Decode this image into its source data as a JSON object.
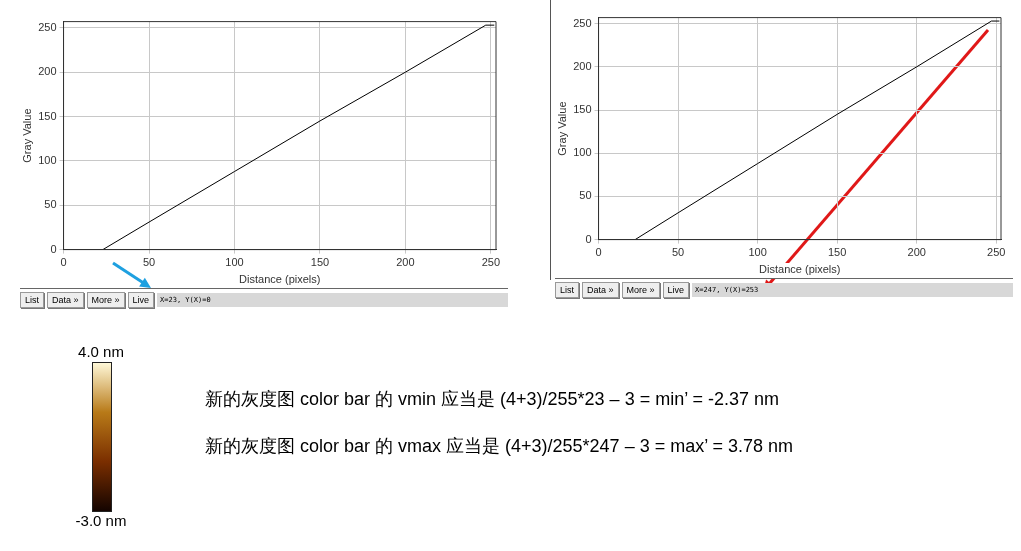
{
  "chart_data": [
    {
      "type": "line",
      "xlabel": "Distance (pixels)",
      "ylabel": "Gray Value",
      "series": [
        {
          "color": "#000000",
          "x": [
            0,
            23,
            50,
            100,
            150,
            200,
            247,
            252
          ],
          "values": [
            0,
            0,
            31,
            88,
            145,
            200,
            253,
            253
          ]
        }
      ],
      "xlim": [
        0,
        253
      ],
      "xticks": [
        0,
        50,
        100,
        150,
        200,
        250
      ],
      "ylim": [
        0,
        257
      ],
      "yticks": [
        0,
        50,
        100,
        150,
        200,
        250
      ],
      "grid": true,
      "annotations": [
        "List",
        "Data »",
        "More »",
        "Live",
        "X=23, Y(X)=0"
      ]
    },
    {
      "type": "line",
      "xlabel": "Distance (pixels)",
      "ylabel": "Gray Value",
      "series": [
        {
          "color": "#000000",
          "x": [
            0,
            23,
            50,
            100,
            150,
            200,
            247,
            252
          ],
          "values": [
            0,
            0,
            31,
            88,
            145,
            200,
            253,
            253
          ]
        }
      ],
      "xlim": [
        0,
        253
      ],
      "xticks": [
        0,
        50,
        100,
        150,
        200,
        250
      ],
      "ylim": [
        0,
        257
      ],
      "yticks": [
        0,
        50,
        100,
        150,
        200,
        250
      ],
      "grid": true,
      "annotations": [
        "List",
        "Data »",
        "More »",
        "Live",
        "X=247, Y(X)=253"
      ]
    },
    {
      "type": "other",
      "annotations": [
        "4.0 nm",
        "-3.0 nm",
        "新的灰度图 color bar 的 vmin 应当是 (4+3)/255*23 – 3 = min’ = -2.37 nm",
        "新的灰度图 color bar 的 vmax 应当是 (4+3)/255*247 – 3 = max’ = 3.78 nm"
      ]
    }
  ]
}
